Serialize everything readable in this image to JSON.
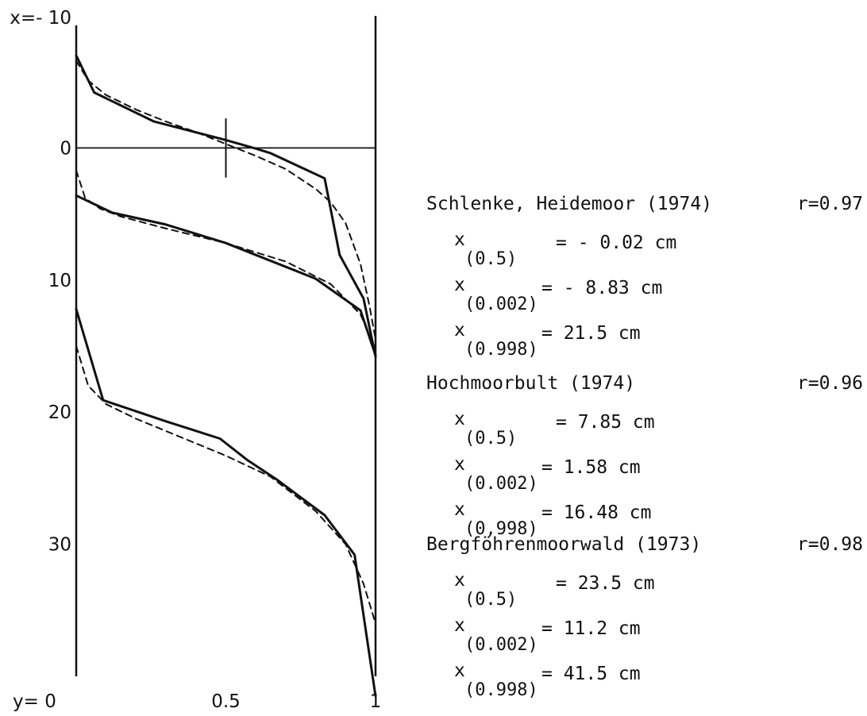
{
  "chart_data": {
    "type": "line",
    "x_axis_label": "y= 0",
    "x_ticks": [
      {
        "value": 0,
        "label": "y= 0"
      },
      {
        "value": 0.5,
        "label": "0.5"
      },
      {
        "value": 1,
        "label": "1"
      }
    ],
    "y_axis_label": "x=- 10",
    "y_ticks": [
      {
        "value": -10,
        "label": "x=- 10"
      },
      {
        "value": 0,
        "label": "0"
      },
      {
        "value": 10,
        "label": "10"
      },
      {
        "value": 20,
        "label": "20"
      },
      {
        "value": 30,
        "label": "30"
      }
    ],
    "xlim": [
      0,
      1
    ],
    "ylim": [
      -10,
      40
    ],
    "y_inverted": true,
    "reference_line": {
      "y": 0
    },
    "median_marker": {
      "x": 0.5,
      "y_from": -2,
      "y_to": 2
    },
    "series": [
      {
        "id": "schlenke",
        "style": "observed",
        "points": [
          [
            0,
            -7
          ],
          [
            0.06,
            -4.2
          ],
          [
            0.26,
            -2.0
          ],
          [
            0.5,
            -0.6
          ],
          [
            0.6,
            0.05
          ],
          [
            0.65,
            0.4
          ],
          [
            0.83,
            2.3
          ],
          [
            0.88,
            8.1
          ],
          [
            0.96,
            11.4
          ],
          [
            1,
            15.8
          ]
        ]
      },
      {
        "id": "schlenke",
        "style": "fitted",
        "points": [
          [
            0,
            -6.6
          ],
          [
            0.04,
            -5.1
          ],
          [
            0.1,
            -4.0
          ],
          [
            0.2,
            -2.9
          ],
          [
            0.3,
            -2.0
          ],
          [
            0.4,
            -1.2
          ],
          [
            0.5,
            -0.3
          ],
          [
            0.6,
            0.6
          ],
          [
            0.7,
            1.6
          ],
          [
            0.8,
            3.1
          ],
          [
            0.85,
            4.1
          ],
          [
            0.9,
            5.7
          ],
          [
            0.95,
            8.8
          ],
          [
            0.98,
            12.0
          ],
          [
            1,
            14.5
          ]
        ]
      },
      {
        "id": "hochmoorbult",
        "style": "observed",
        "points": [
          [
            0,
            3.6
          ],
          [
            0.12,
            4.9
          ],
          [
            0.3,
            5.8
          ],
          [
            0.5,
            7.2
          ],
          [
            0.6,
            8.1
          ],
          [
            0.8,
            9.9
          ],
          [
            0.95,
            12.3
          ],
          [
            1,
            15.7
          ]
        ]
      },
      {
        "id": "hochmoorbult",
        "style": "fitted",
        "points": [
          [
            0,
            1.7
          ],
          [
            0.03,
            3.8
          ],
          [
            0.08,
            4.6
          ],
          [
            0.15,
            5.2
          ],
          [
            0.3,
            6.1
          ],
          [
            0.5,
            7.2
          ],
          [
            0.7,
            8.6
          ],
          [
            0.85,
            10.3
          ],
          [
            0.95,
            12.6
          ],
          [
            1,
            15.2
          ]
        ]
      },
      {
        "id": "bergfoehrenmoorwald",
        "style": "observed",
        "points": [
          [
            0,
            12.2
          ],
          [
            0.09,
            19.1
          ],
          [
            0.3,
            20.7
          ],
          [
            0.48,
            22.0
          ],
          [
            0.57,
            23.6
          ],
          [
            0.67,
            25.1
          ],
          [
            0.83,
            27.8
          ],
          [
            0.93,
            30.8
          ],
          [
            1,
            41.5
          ]
        ]
      },
      {
        "id": "bergfoehrenmoorwald",
        "style": "fitted",
        "points": [
          [
            0,
            15.0
          ],
          [
            0.04,
            18.0
          ],
          [
            0.1,
            19.4
          ],
          [
            0.2,
            20.5
          ],
          [
            0.35,
            21.9
          ],
          [
            0.5,
            23.3
          ],
          [
            0.65,
            24.9
          ],
          [
            0.8,
            27.5
          ],
          [
            0.9,
            30.0
          ],
          [
            0.96,
            33.0
          ],
          [
            1,
            36.0
          ]
        ]
      }
    ],
    "annotations": [
      {
        "title": "Schlenke, Heidemoor (1974)",
        "r": "r=0.97",
        "stats": [
          {
            "sub": "(0.5)",
            "value": "= - 0.02 cm"
          },
          {
            "sub": "(0.002)",
            "value": "= - 8.83 cm"
          },
          {
            "sub": "(0.998)",
            "value": "=  21.5  cm"
          }
        ]
      },
      {
        "title": "Hochmoorbult (1974)",
        "r": "r=0.96",
        "stats": [
          {
            "sub": "(0.5)",
            "value": "=  7.85 cm"
          },
          {
            "sub": "(0.002)",
            "value": "=  1.58 cm"
          },
          {
            "sub": "(0,998)",
            "value": "= 16.48 cm"
          }
        ]
      },
      {
        "title": "Bergföhrenmoorwald (1973)",
        "r": "r=0.98",
        "stats": [
          {
            "sub": "(0.5)",
            "value": "= 23.5  cm"
          },
          {
            "sub": "(0.002)",
            "value": "= 11.2  cm"
          },
          {
            "sub": "(0.998)",
            "value": "= 41.5  cm"
          }
        ]
      }
    ],
    "stat_symbol": "x"
  }
}
